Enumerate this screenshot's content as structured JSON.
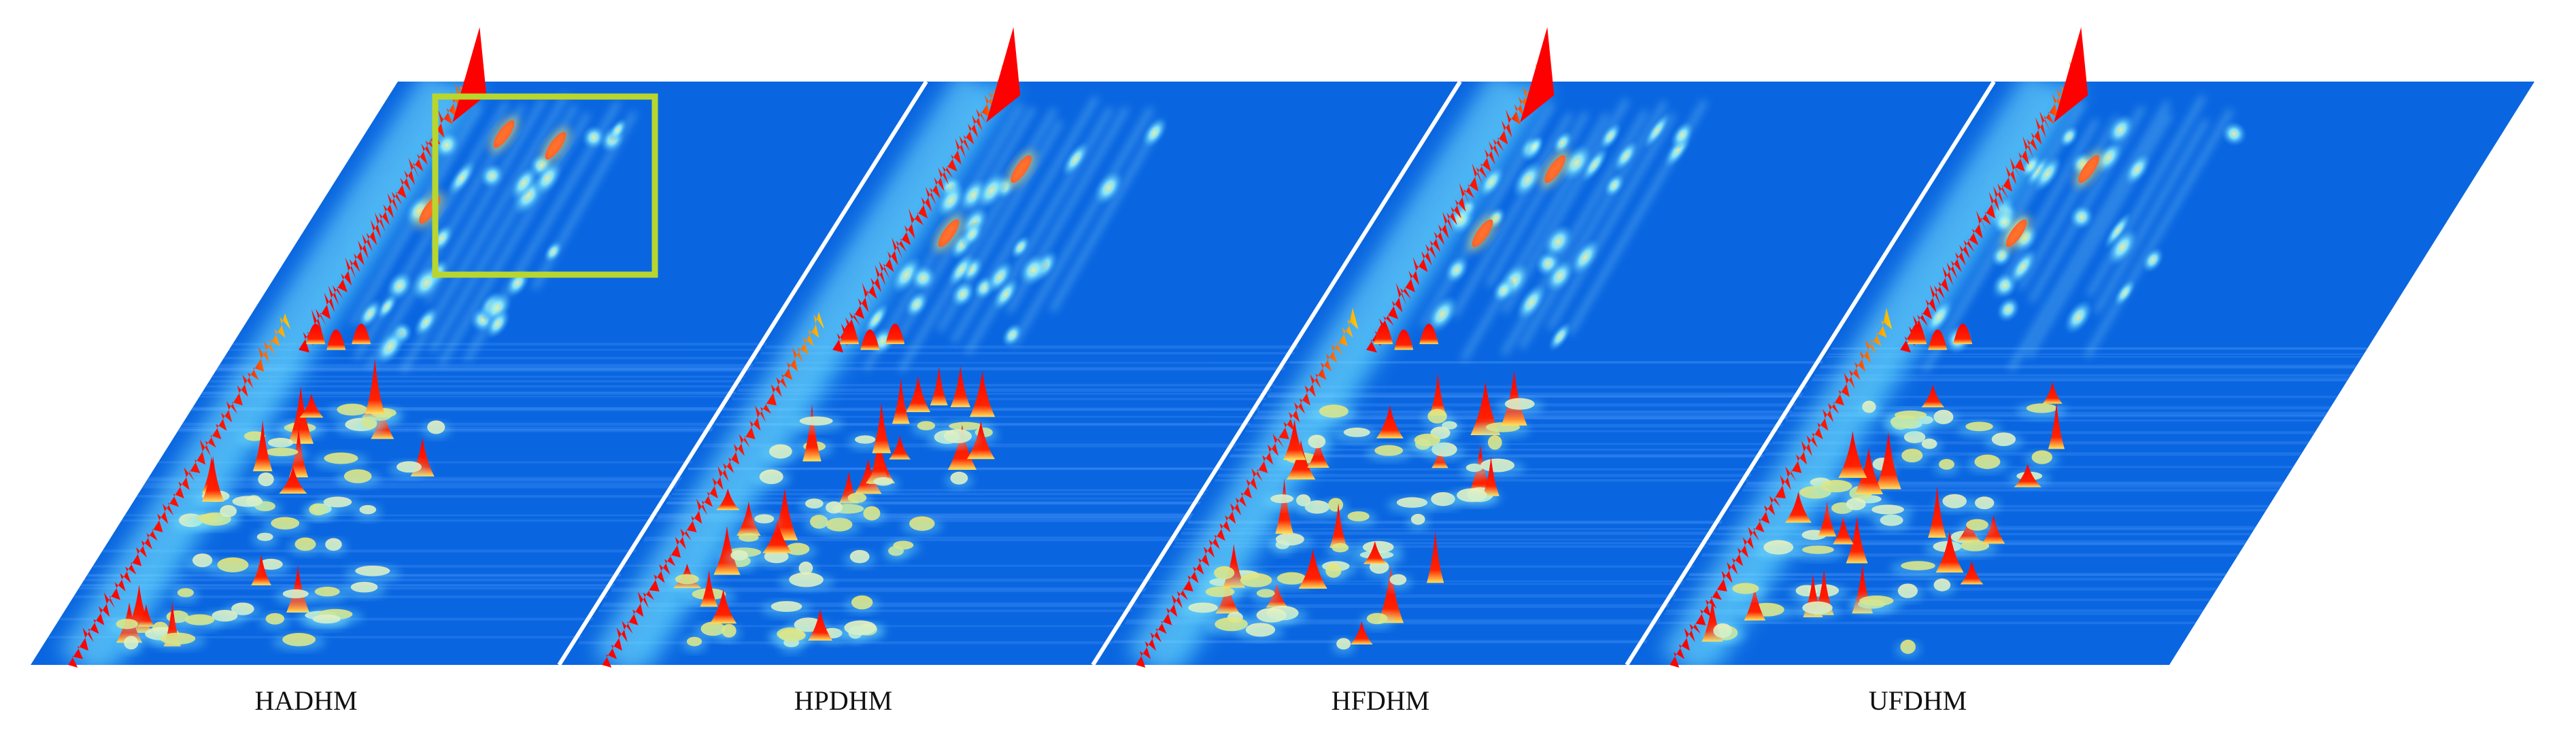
{
  "figure": {
    "panels": [
      {
        "label": "HADHM",
        "highlight_box": true
      },
      {
        "label": "HPDHM",
        "highlight_box": false
      },
      {
        "label": "HFDHM",
        "highlight_box": false
      },
      {
        "label": "UFDHM",
        "highlight_box": false
      }
    ]
  },
  "colors": {
    "background_plane": "#0a66e0",
    "ridge_peak": "#ff0000",
    "mid_intensity": "#ffe45c",
    "low_glow": "#7fe9ff",
    "highlight_box": "#b8d62e"
  },
  "chart_data": {
    "type": "heatmap",
    "subtype": "3d-surface (GC×GC chromatogram style)",
    "panels": [
      "HADHM",
      "HPDHM",
      "HFDHM",
      "UFDHM"
    ],
    "color_scale": [
      "blue",
      "cyan",
      "yellow",
      "red"
    ],
    "axes_visible": false,
    "grid": false,
    "legend": "none"
  }
}
